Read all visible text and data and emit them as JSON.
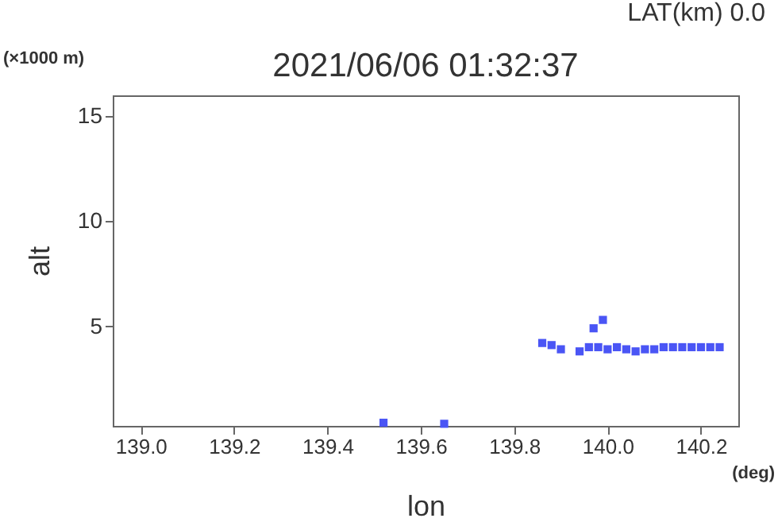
{
  "chart_data": {
    "type": "scatter",
    "title": "2021/06/06 01:32:37",
    "xlabel": "lon",
    "ylabel": "alt",
    "annotations": [
      "LAT(km) 0.0",
      "(×1000 m)",
      "(deg)"
    ],
    "x": [
      139.52,
      139.65,
      139.86,
      139.88,
      139.9,
      139.94,
      139.96,
      139.97,
      139.98,
      139.99,
      140.0,
      140.02,
      140.04,
      140.06,
      140.08,
      140.1,
      140.12,
      140.14,
      140.16,
      140.18,
      140.2,
      140.22,
      140.24
    ],
    "series": [
      {
        "color": "#4a55f5",
        "values": [
          0.4,
          0.35,
          4.2,
          4.1,
          3.9,
          3.8,
          4.0,
          4.9,
          4.0,
          5.3,
          3.9,
          4.0,
          3.9,
          3.8,
          3.9,
          3.9,
          4.0,
          4.0,
          4.0,
          4.0,
          4.0,
          4.0,
          4.0
        ]
      }
    ],
    "xlim": [
      138.94,
      140.28
    ],
    "ylim": [
      0.25,
      16
    ],
    "xticks": [
      {
        "value": 139.0,
        "label": "139.0"
      },
      {
        "value": 139.2,
        "label": "139.2"
      },
      {
        "value": 139.4,
        "label": "139.4"
      },
      {
        "value": 139.6,
        "label": "139.6"
      },
      {
        "value": 139.8,
        "label": "139.8"
      },
      {
        "value": 140.0,
        "label": "140.0"
      },
      {
        "value": 140.2,
        "label": "140.2"
      }
    ],
    "yticks": [
      5,
      10,
      15
    ],
    "grid": false,
    "marker": "square"
  }
}
